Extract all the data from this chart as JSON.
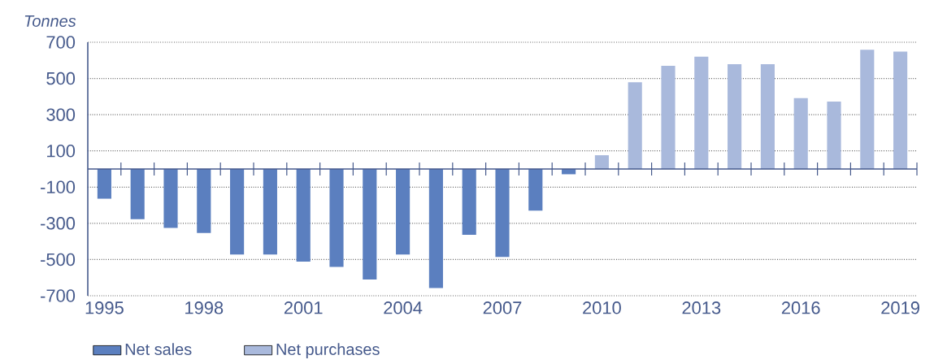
{
  "chart_data": {
    "type": "bar",
    "ylabel": "Tonnes",
    "categories": [
      "1995",
      null,
      null,
      "1998",
      null,
      null,
      "2001",
      null,
      null,
      "2004",
      null,
      null,
      "2007",
      null,
      null,
      "2010",
      null,
      null,
      "2013",
      null,
      null,
      "2016",
      null,
      null,
      "2019"
    ],
    "series": [
      {
        "name": "Net sales",
        "color": "#5b7fbf",
        "values": [
          -164,
          -277,
          -325,
          -353,
          -472,
          -472,
          -512,
          -541,
          -610,
          -472,
          -657,
          -363,
          -486,
          -230,
          -29,
          null,
          null,
          null,
          null,
          null,
          null,
          null,
          null,
          null,
          null
        ]
      },
      {
        "name": "Net purchases",
        "color": "#a9b9dc",
        "values": [
          null,
          null,
          null,
          null,
          null,
          null,
          null,
          null,
          null,
          null,
          null,
          null,
          null,
          null,
          null,
          76,
          479,
          570,
          620,
          579,
          579,
          391,
          372,
          658,
          648
        ]
      }
    ],
    "ylim": [
      -700,
      700
    ],
    "yticks": [
      -700,
      -500,
      -300,
      -100,
      100,
      300,
      500,
      700
    ],
    "ref_lines": [
      {
        "axis": "y",
        "value": 0
      }
    ],
    "grid": "y",
    "legend": "bottom"
  }
}
